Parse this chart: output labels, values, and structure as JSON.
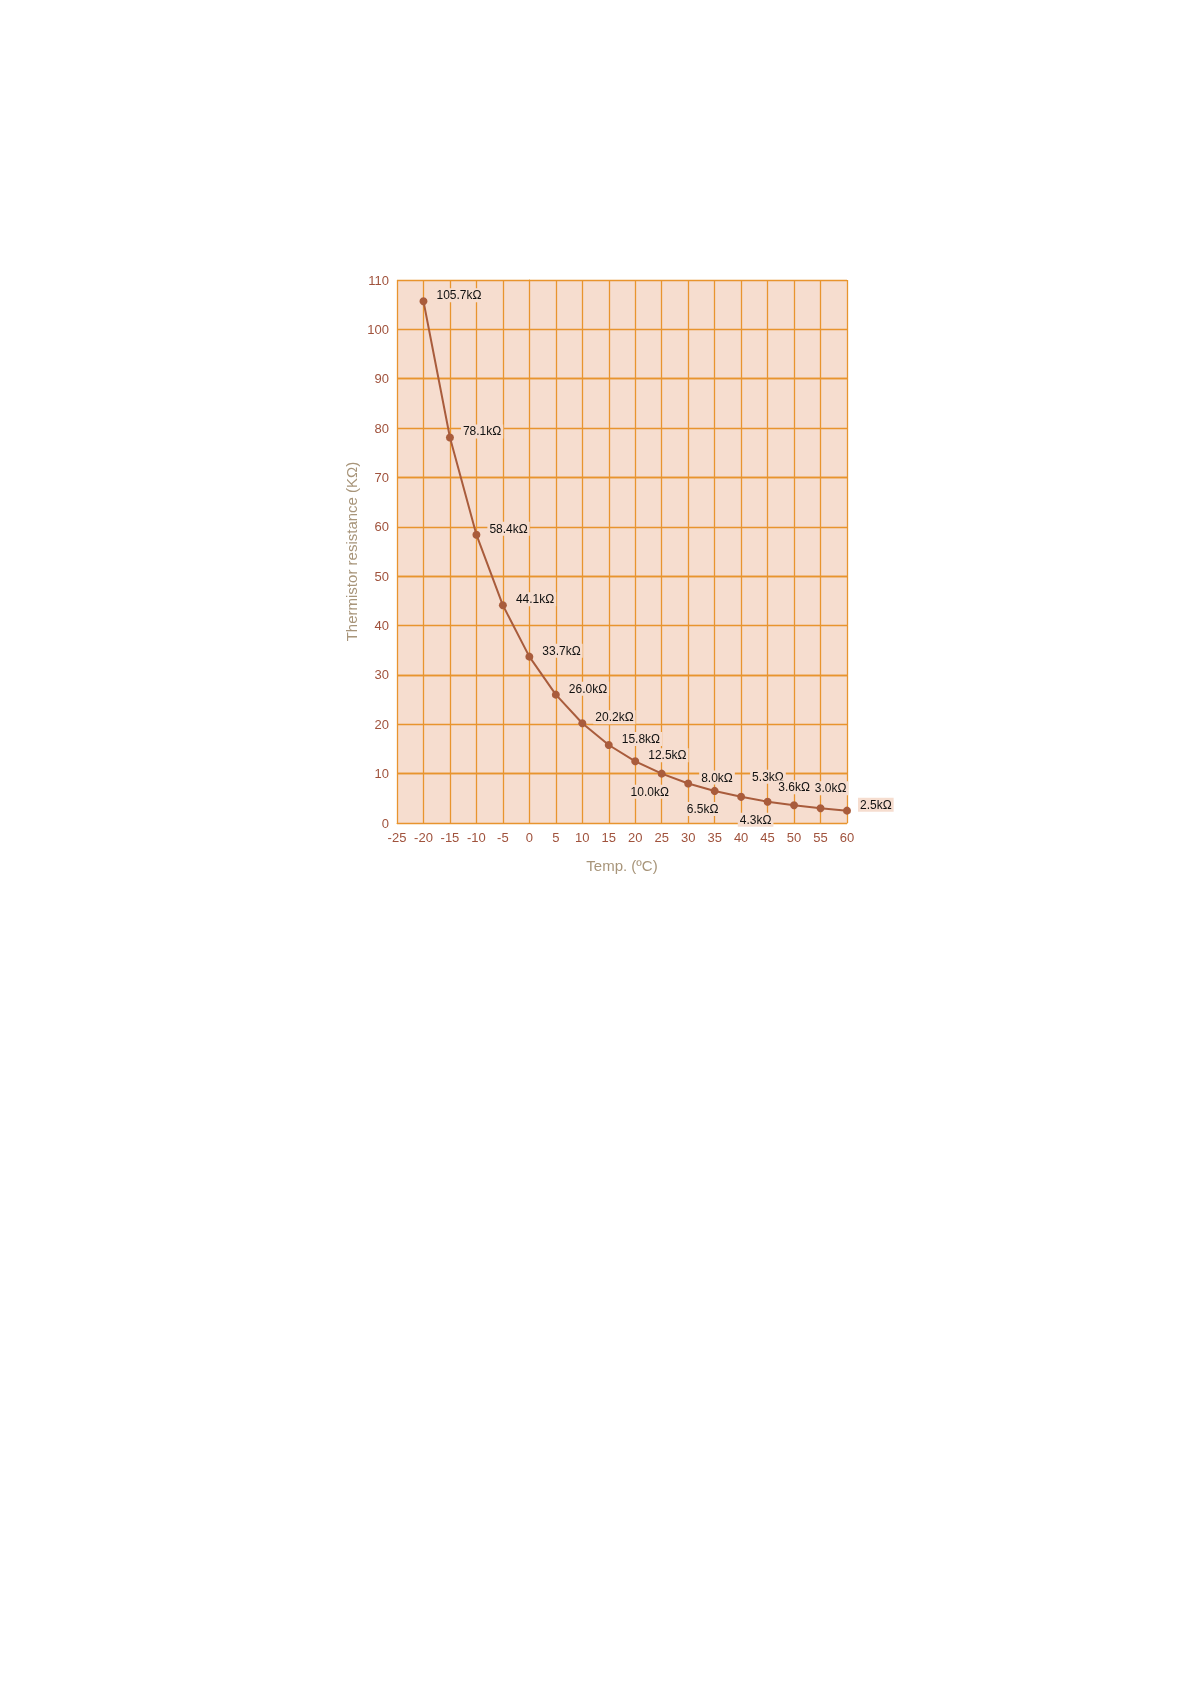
{
  "chart_data": {
    "type": "line",
    "xlabel": "Temp. (ºC)",
    "ylabel": "Thermistor resistance (KΩ)",
    "x": [
      -20,
      -15,
      -10,
      -5,
      0,
      5,
      10,
      15,
      20,
      25,
      30,
      35,
      40,
      45,
      50,
      55,
      60
    ],
    "series": [
      {
        "color": "#a95c3c",
        "values": [
          105.7,
          78.1,
          58.4,
          44.1,
          33.7,
          26.0,
          20.2,
          15.8,
          12.5,
          10.0,
          8.0,
          6.5,
          5.3,
          4.3,
          3.6,
          3.0,
          2.5
        ],
        "value_labels": [
          "105.7kΩ",
          "78.1kΩ",
          "58.4kΩ",
          "44.1kΩ",
          "33.7kΩ",
          "26.0kΩ",
          "20.2kΩ",
          "15.8kΩ",
          "12.5kΩ",
          "10.0kΩ",
          "8.0kΩ",
          "6.5kΩ",
          "5.3kΩ",
          "4.3kΩ",
          "3.6kΩ",
          "3.0kΩ",
          "2.5kΩ"
        ]
      }
    ],
    "xlim": [
      -25,
      60
    ],
    "xticks": [
      -25,
      -20,
      -15,
      -10,
      -5,
      0,
      5,
      10,
      15,
      20,
      25,
      30,
      35,
      40,
      45,
      50,
      55,
      60
    ],
    "ylim": [
      0,
      110
    ],
    "yticks": [
      0,
      10,
      20,
      30,
      40,
      50,
      60,
      70,
      80,
      90,
      100,
      110
    ],
    "grid": true,
    "marker": "circle",
    "line_style": "solid"
  }
}
